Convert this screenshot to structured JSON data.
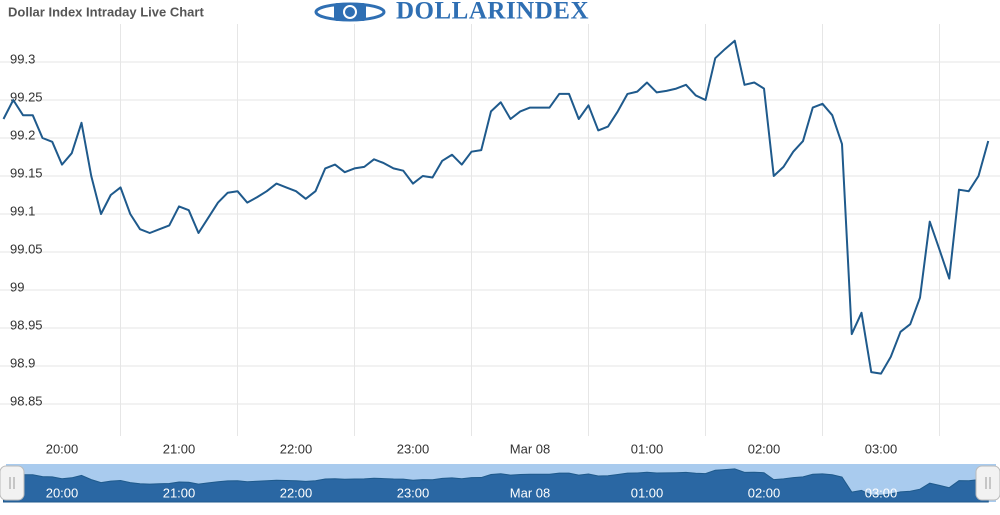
{
  "logo": "DOLLARINDEX",
  "chart_data": {
    "type": "line",
    "title": "Dollar Index Intraday Live Chart",
    "categories": [
      null,
      null,
      null,
      null,
      null,
      null,
      "20:00",
      null,
      null,
      null,
      null,
      null,
      null,
      null,
      null,
      null,
      null,
      null,
      "21:00",
      null,
      null,
      null,
      null,
      null,
      null,
      null,
      null,
      null,
      null,
      null,
      "22:00",
      null,
      null,
      null,
      null,
      null,
      null,
      null,
      null,
      null,
      null,
      null,
      "23:00",
      null,
      null,
      null,
      null,
      null,
      null,
      null,
      null,
      null,
      null,
      null,
      "Mar 08",
      null,
      null,
      null,
      null,
      null,
      null,
      null,
      null,
      null,
      null,
      null,
      "01:00",
      null,
      null,
      null,
      null,
      null,
      null,
      null,
      null,
      null,
      null,
      null,
      "02:00",
      null,
      null,
      null,
      null,
      null,
      null,
      null,
      null,
      null,
      null,
      null,
      "03:00",
      null,
      null,
      null,
      null,
      null,
      null,
      null,
      null,
      null,
      null,
      null
    ],
    "series": [
      {
        "name": "Dollar Index",
        "color": "#1f5a8c",
        "values": [
          99.225,
          99.25,
          99.23,
          99.23,
          99.2,
          99.195,
          99.165,
          99.18,
          99.22,
          99.15,
          99.1,
          99.125,
          99.135,
          99.1,
          99.08,
          99.075,
          99.08,
          99.085,
          99.11,
          99.105,
          99.075,
          99.095,
          99.115,
          99.128,
          99.13,
          99.115,
          99.122,
          99.13,
          99.14,
          99.135,
          99.13,
          99.12,
          99.13,
          99.16,
          99.165,
          99.155,
          99.16,
          99.162,
          99.172,
          99.167,
          99.16,
          99.157,
          99.14,
          99.15,
          99.148,
          99.17,
          99.178,
          99.165,
          99.182,
          99.184,
          99.235,
          99.247,
          99.225,
          99.235,
          99.24,
          99.24,
          99.24,
          99.258,
          99.258,
          99.225,
          99.243,
          99.21,
          99.215,
          99.235,
          99.258,
          99.261,
          99.273,
          99.26,
          99.262,
          99.265,
          99.27,
          99.256,
          99.25,
          99.305,
          99.317,
          99.328,
          99.27,
          99.273,
          99.265,
          99.15,
          99.162,
          99.182,
          99.196,
          99.24,
          99.245,
          99.23,
          99.192,
          98.942,
          98.97,
          98.892,
          98.89,
          98.912,
          98.945,
          98.955,
          98.99,
          99.09,
          99.053,
          99.015,
          99.132,
          99.13,
          99.15,
          99.196
        ]
      }
    ],
    "ylim": [
      98.81,
      99.35
    ],
    "yticks": [
      98.85,
      98.9,
      98.95,
      99,
      99.05,
      99.1,
      99.15,
      99.2,
      99.25,
      99.3
    ],
    "grid": true
  }
}
